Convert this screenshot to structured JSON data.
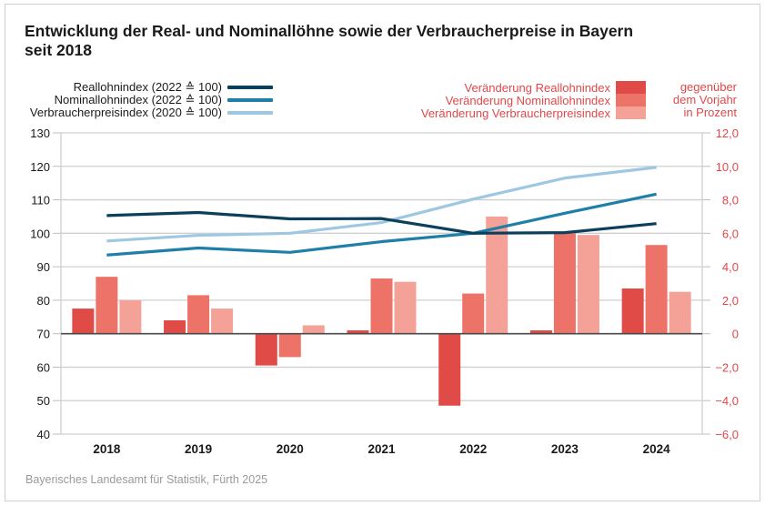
{
  "chart_data": {
    "type": "bar+line",
    "title": "Entwicklung der Real- und Nominallöhne sowie der Verbraucherpreise in Bayern seit 2018",
    "categories": [
      "2018",
      "2019",
      "2020",
      "2021",
      "2022",
      "2023",
      "2024"
    ],
    "left_axis": {
      "ylim": [
        40,
        130
      ],
      "ticks": [
        "130",
        "120",
        "110",
        "100",
        "90",
        "80",
        "70",
        "60",
        "50",
        "40"
      ],
      "tick_values": [
        130,
        120,
        110,
        100,
        90,
        80,
        70,
        60,
        50,
        40
      ]
    },
    "right_axis": {
      "ylim": [
        -6,
        12
      ],
      "ticks": [
        "12,0",
        "10,0",
        "8,0",
        "6,0",
        "4,0",
        "2,0",
        "0",
        "−2,0",
        "−4,0",
        "−6,0"
      ],
      "tick_values": [
        12,
        10,
        8,
        6,
        4,
        2,
        0,
        -2,
        -4,
        -6
      ],
      "note": [
        "gegenüber",
        "dem Vorjahr",
        "in Prozent"
      ]
    },
    "line_series": [
      {
        "name": "Reallohnindex (2022 ≙ 100)",
        "color": "#0b3f5c",
        "axis": "left",
        "values": [
          105.3,
          106.2,
          104.3,
          104.4,
          100.0,
          100.2,
          102.9
        ]
      },
      {
        "name": "Nominallohnindex (2022 ≙ 100)",
        "color": "#1f7fa8",
        "axis": "left",
        "values": [
          93.5,
          95.6,
          94.3,
          97.5,
          100.0,
          106.0,
          111.7
        ]
      },
      {
        "name": "Verbraucherpreisindex (2020 ≙ 100)",
        "color": "#9ec8e2",
        "axis": "left",
        "values": [
          97.7,
          99.4,
          100.0,
          103.2,
          110.2,
          116.5,
          119.7
        ]
      }
    ],
    "bar_series": [
      {
        "name": "Veränderung Reallohnindex",
        "color": "#e04a47",
        "axis": "right",
        "values": [
          1.5,
          0.8,
          -1.9,
          0.2,
          -4.3,
          0.2,
          2.7
        ]
      },
      {
        "name": "Veränderung Nominallohnindex",
        "color": "#ed7369",
        "axis": "right",
        "values": [
          3.4,
          2.3,
          -1.4,
          3.3,
          2.4,
          6.0,
          5.3
        ]
      },
      {
        "name": "Veränderung Verbraucherpreisindex",
        "color": "#f4a297",
        "axis": "right",
        "values": [
          2.0,
          1.5,
          0.5,
          3.1,
          7.0,
          5.9,
          2.5
        ]
      }
    ],
    "grid": true,
    "legend_placement": "top"
  },
  "source": "Bayerisches Landesamt für Statistik, Fürth 2025",
  "title_line1": "Entwicklung der Real- und Nominallöhne sowie der Verbraucherpreise in Bayern",
  "title_line2": "seit 2018"
}
